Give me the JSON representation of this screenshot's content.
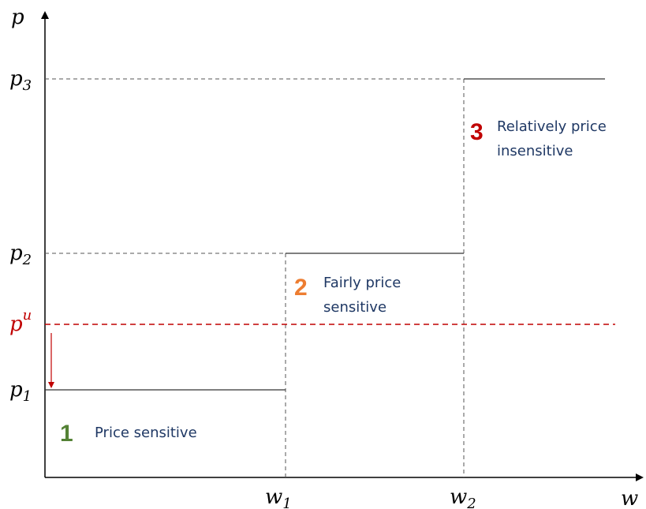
{
  "axes": {
    "y_label": "p",
    "x_label": "w"
  },
  "y_levels": [
    {
      "base": "p",
      "sub": "3"
    },
    {
      "base": "p",
      "sub": "2"
    },
    {
      "base": "p",
      "sup": "u"
    },
    {
      "base": "p",
      "sub": "1"
    }
  ],
  "x_levels": [
    {
      "base": "w",
      "sub": "1"
    },
    {
      "base": "w",
      "sub": "2"
    }
  ],
  "regions": [
    {
      "number": "1",
      "lines": [
        "Price sensitive"
      ]
    },
    {
      "number": "2",
      "lines": [
        "Fairly price",
        "sensitive"
      ]
    },
    {
      "number": "3",
      "lines": [
        "Relatively price",
        "insensitive"
      ]
    }
  ]
}
